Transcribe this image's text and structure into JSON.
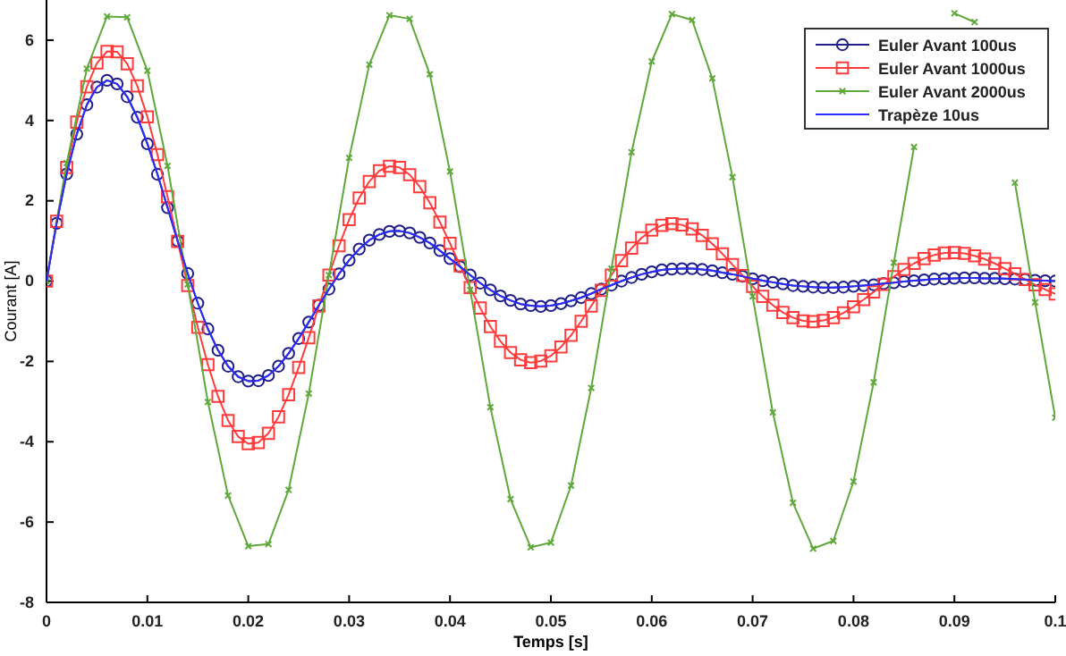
{
  "chart_data": {
    "type": "line",
    "xlabel": "Temps [s]",
    "ylabel": "Courant [A]",
    "x": [
      0,
      0.001,
      0.002,
      0.003,
      0.004,
      0.005,
      0.006,
      0.007,
      0.008,
      0.009,
      0.01,
      0.011,
      0.012,
      0.013,
      0.014,
      0.015,
      0.016,
      0.017,
      0.018,
      0.019,
      0.02,
      0.021,
      0.022,
      0.023,
      0.024,
      0.025,
      0.026,
      0.027,
      0.028,
      0.029,
      0.03,
      0.031,
      0.032,
      0.033,
      0.034,
      0.035,
      0.036,
      0.037,
      0.038,
      0.039,
      0.04,
      0.041,
      0.042,
      0.043,
      0.044,
      0.045,
      0.046,
      0.047,
      0.048,
      0.049,
      0.05,
      0.051,
      0.052,
      0.053,
      0.054,
      0.055,
      0.056,
      0.057,
      0.058,
      0.059,
      0.06,
      0.061,
      0.062,
      0.063,
      0.064,
      0.065,
      0.066,
      0.067,
      0.068,
      0.069,
      0.07,
      0.071,
      0.072,
      0.073,
      0.074,
      0.075,
      0.076,
      0.077,
      0.078,
      0.079,
      0.08,
      0.081,
      0.082,
      0.083,
      0.084,
      0.085,
      0.086,
      0.087,
      0.088,
      0.089,
      0.09,
      0.091,
      0.092,
      0.093,
      0.094,
      0.095,
      0.096,
      0.097,
      0.098,
      0.099,
      0.1
    ],
    "series": [
      {
        "name": "Euler Avant 100us",
        "color": "#1f1f8a",
        "marker": "circle",
        "values": [
          0,
          1.44,
          2.67,
          3.66,
          4.39,
          4.83,
          5.0,
          4.91,
          4.59,
          4.08,
          3.42,
          2.66,
          1.83,
          1.0,
          0.19,
          -0.55,
          -1.19,
          -1.72,
          -2.12,
          -2.38,
          -2.49,
          -2.48,
          -2.35,
          -2.12,
          -1.8,
          -1.43,
          -1.02,
          -0.6,
          -0.2,
          0.18,
          0.52,
          0.8,
          1.02,
          1.16,
          1.24,
          1.25,
          1.2,
          1.09,
          0.95,
          0.76,
          0.56,
          0.36,
          0.15,
          -0.05,
          -0.22,
          -0.37,
          -0.48,
          -0.57,
          -0.61,
          -0.63,
          -0.61,
          -0.56,
          -0.49,
          -0.41,
          -0.31,
          -0.2,
          -0.1,
          0,
          0.09,
          0.17,
          0.23,
          0.28,
          0.3,
          0.31,
          0.31,
          0.29,
          0.26,
          0.21,
          0.17,
          0.12,
          0.06,
          0.01,
          -0.03,
          -0.07,
          -0.11,
          -0.13,
          -0.15,
          -0.16,
          -0.16,
          -0.15,
          -0.13,
          -0.11,
          -0.09,
          -0.06,
          -0.04,
          -0.01,
          0.01,
          0.03,
          0.05,
          0.06,
          0.07,
          0.08,
          0.08,
          0.07,
          0.07,
          0.06,
          0.05,
          0.04,
          0.02,
          0.01,
          0
        ]
      },
      {
        "name": "Euler Avant 1000us",
        "color": "#ff3b3b",
        "marker": "square",
        "values": [
          0,
          1.49,
          2.83,
          3.96,
          4.84,
          5.43,
          5.72,
          5.71,
          5.41,
          4.86,
          4.09,
          3.15,
          2.1,
          0.99,
          -0.11,
          -1.15,
          -2.08,
          -2.87,
          -3.47,
          -3.87,
          -4.05,
          -4.02,
          -3.79,
          -3.38,
          -2.83,
          -2.15,
          -1.41,
          -0.62,
          0.15,
          0.88,
          1.53,
          2.07,
          2.48,
          2.75,
          2.86,
          2.83,
          2.65,
          2.35,
          1.95,
          1.47,
          0.94,
          0.38,
          -0.16,
          -0.67,
          -1.13,
          -1.5,
          -1.78,
          -1.96,
          -2.03,
          -1.99,
          -1.86,
          -1.64,
          -1.35,
          -1.0,
          -0.62,
          -0.23,
          0.15,
          0.51,
          0.82,
          1.08,
          1.27,
          1.39,
          1.43,
          1.4,
          1.3,
          1.14,
          0.93,
          0.68,
          0.41,
          0.14,
          -0.13,
          -0.38,
          -0.6,
          -0.78,
          -0.91,
          -0.99,
          -1.01,
          -0.98,
          -0.91,
          -0.79,
          -0.64,
          -0.46,
          -0.27,
          -0.08,
          0.11,
          0.29,
          0.44,
          0.56,
          0.65,
          0.7,
          0.71,
          0.69,
          0.63,
          0.55,
          0.44,
          0.31,
          0.18,
          0.04,
          -0.09,
          -0.21,
          -0.32
        ]
      },
      {
        "name": "Euler Avant 2000us",
        "color": "#5fa83a",
        "marker": "cross",
        "x": [
          0,
          0.002,
          0.004,
          0.006,
          0.008,
          0.01,
          0.012,
          0.014,
          0.016,
          0.018,
          0.02,
          0.022,
          0.024,
          0.026,
          0.028,
          0.03,
          0.032,
          0.034,
          0.036,
          0.038,
          0.04,
          0.042,
          0.044,
          0.046,
          0.048,
          0.05,
          0.052,
          0.054,
          0.056,
          0.058,
          0.06,
          0.062,
          0.064,
          0.066,
          0.068,
          0.07,
          0.072,
          0.074,
          0.076,
          0.078,
          0.08,
          0.082,
          0.084,
          0.086,
          0.088,
          0.09,
          0.092,
          0.094,
          0.096,
          0.098,
          0.1
        ],
        "values": [
          0,
          2.94,
          5.29,
          6.59,
          6.57,
          5.24,
          2.87,
          -0.08,
          -3.01,
          -5.34,
          -6.6,
          -6.55,
          -5.2,
          -2.8,
          0.15,
          3.07,
          5.39,
          6.62,
          6.53,
          5.15,
          2.73,
          -0.22,
          -3.14,
          -5.43,
          -6.63,
          -6.51,
          -5.09,
          -2.66,
          0.31,
          3.21,
          5.47,
          6.65,
          6.5,
          5.05,
          2.59,
          -0.38,
          -3.27,
          -5.52,
          -6.66,
          -6.47,
          -4.99,
          -2.52,
          0.46,
          3.34,
          null,
          6.67,
          6.45,
          null,
          2.45,
          -0.53,
          -3.4
        ]
      },
      {
        "name": "Trapèze 10us",
        "color": "#2b2bff",
        "marker": "none",
        "values": [
          0,
          1.44,
          2.67,
          3.66,
          4.39,
          4.83,
          5.0,
          4.91,
          4.59,
          4.08,
          3.42,
          2.66,
          1.83,
          1.0,
          0.19,
          -0.55,
          -1.19,
          -1.72,
          -2.12,
          -2.38,
          -2.49,
          -2.48,
          -2.35,
          -2.12,
          -1.8,
          -1.43,
          -1.02,
          -0.6,
          -0.2,
          0.18,
          0.52,
          0.8,
          1.02,
          1.16,
          1.24,
          1.25,
          1.2,
          1.09,
          0.95,
          0.76,
          0.56,
          0.36,
          0.15,
          -0.05,
          -0.22,
          -0.37,
          -0.48,
          -0.57,
          -0.61,
          -0.63,
          -0.61,
          -0.56,
          -0.49,
          -0.41,
          -0.31,
          -0.2,
          -0.1,
          0,
          0.09,
          0.17,
          0.23,
          0.28,
          0.3,
          0.31,
          0.31,
          0.29,
          0.26,
          0.21,
          0.17,
          0.12,
          0.06,
          0.01,
          -0.03,
          -0.07,
          -0.11,
          -0.13,
          -0.15,
          -0.16,
          -0.16,
          -0.15,
          -0.13,
          -0.11,
          -0.09,
          -0.06,
          -0.04,
          -0.01,
          0.01,
          0.03,
          0.05,
          0.06,
          0.07,
          0.08,
          0.08,
          0.07,
          0.07,
          0.06,
          0.05,
          0.04,
          0.02,
          0.01,
          0
        ]
      }
    ],
    "xlim": [
      0,
      0.1
    ],
    "xticks": [
      0,
      0.01,
      0.02,
      0.03,
      0.04,
      0.05,
      0.06,
      0.07,
      0.08,
      0.09,
      0.1
    ],
    "ylim": [
      -8,
      7
    ],
    "yticks": [
      -8,
      -6,
      -4,
      -2,
      0,
      2,
      4,
      6
    ],
    "grid": false,
    "legend": "top right",
    "line_style": "solid"
  }
}
